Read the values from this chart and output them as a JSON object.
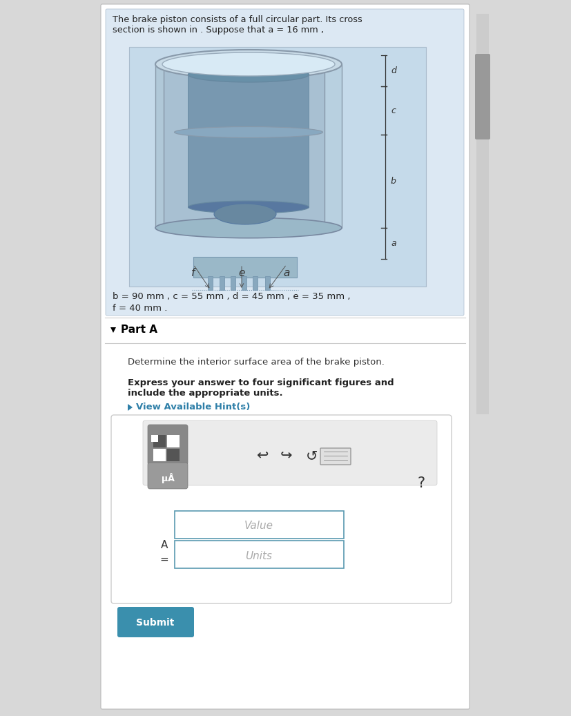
{
  "page_bg": "#d8d8d8",
  "card_bg": "#ffffff",
  "panel_bg": "#dce8f3",
  "img_bg": "#c5daea",
  "header_text_line1": "The brake piston consists of a full circular part. Its cross",
  "header_text_line2": "section is shown in . Suppose that a = 16 mm ,",
  "params_line1": "b = 90 mm , c = 55 mm , d = 45 mm , e = 35 mm ,",
  "params_line2": "f = 40 mm .",
  "part_a_text": "Part A",
  "problem_text": "Determine the interior surface area of the brake piston.",
  "bold_line1": "Express your answer to four significant figures and",
  "bold_line2": "include the appropriate units.",
  "hint_text": "View Available Hint(s)",
  "value_placeholder": "Value",
  "units_placeholder": "Units",
  "submit_text": "Submit",
  "submit_color": "#3a8fad",
  "hint_color": "#2e7fa8",
  "toolbar_bg": "#ebebeb",
  "grid_btn_color": "#888888",
  "mu_btn_color": "#999999"
}
